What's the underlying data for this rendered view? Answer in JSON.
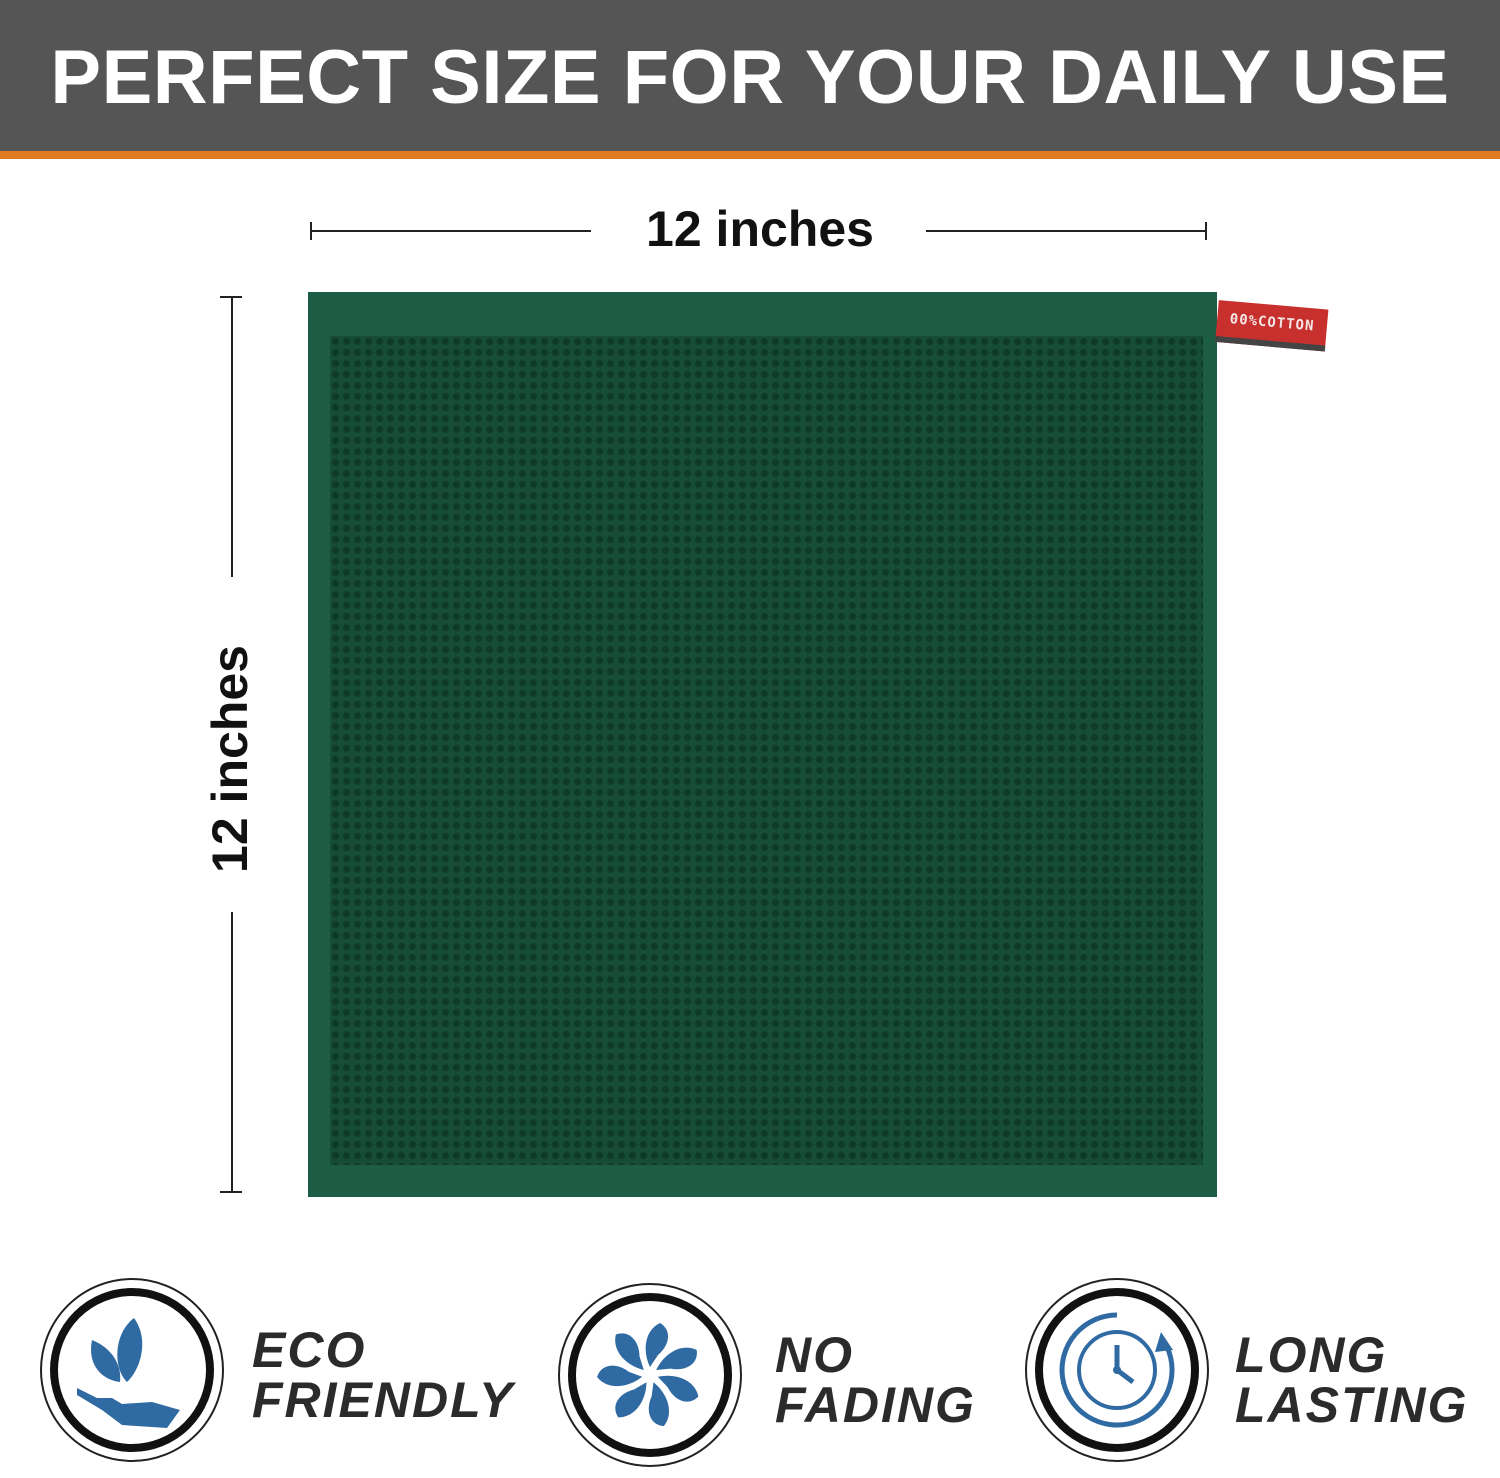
{
  "header": {
    "title": "PERFECT SIZE FOR YOUR DAILY USE"
  },
  "dimensions": {
    "width_label": "12 inches",
    "height_label": "12 inches"
  },
  "product": {
    "tag_text": "00%COTTON",
    "color": "#1d5c45",
    "tag_color": "#c8302e"
  },
  "colors": {
    "header_bg": "#555555",
    "header_accent": "#e07a1e",
    "icon_blue": "#2f6aa3"
  },
  "features": [
    {
      "icon": "hand-leaves-icon",
      "line1": "ECO",
      "line2": "FRIENDLY"
    },
    {
      "icon": "pinwheel-icon",
      "line1": "NO",
      "line2": "FADING"
    },
    {
      "icon": "clock-icon",
      "line1": "LONG",
      "line2": "LASTING"
    }
  ]
}
